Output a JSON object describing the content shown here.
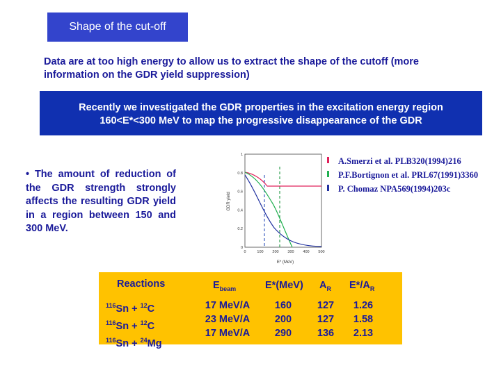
{
  "slide": {
    "title": "Shape of the cut-off",
    "intro": "Data are at too high energy to allow us to extract the shape of the cutoff (more information on the GDR yield suppression)",
    "banner_line1": "Recently  we investigated the GDR properties in the excitation energy region",
    "banner_line2": "160<E*<300 MeV to map the progressive disappearance of the GDR",
    "bullet_text": "The amount of reduction of the GDR strength strongly affects the resulting GDR yield in a region between 150 and 300 MeV."
  },
  "legend": [
    {
      "label": "A.Smerzi et al.  PLB320(1994)216",
      "color": "#e0205a"
    },
    {
      "label": "P.F.Bortignon et al. PRL67(1991)3360",
      "color": "#20b050"
    },
    {
      "label": "P. Chomaz  NPA569(1994)203c",
      "color": "#2030a0"
    }
  ],
  "plot": {
    "ylabel": "GDR yield",
    "xlabel": "E* (MeV)",
    "yticks": [
      "1",
      "0.8",
      "0.6",
      "0.4",
      "0.2",
      "0"
    ],
    "xticks": [
      "0",
      "100",
      "200",
      "300",
      "400",
      "500"
    ]
  },
  "table": {
    "headers": {
      "reactions": "Reactions",
      "ebeam_main": "E",
      "ebeam_sub": "beam",
      "estar": "E*(MeV)",
      "ar_main": "A",
      "ar_sub": "R",
      "estar_ar_main": "E*/A",
      "estar_ar_sub": "R"
    },
    "rows": [
      {
        "tgt_a": "116",
        "tgt_el": "Sn",
        "plus": " + ",
        "proj_a": "12",
        "proj_el": "C",
        "ebeam": "17 MeV/A",
        "estar": "160",
        "ar": "127",
        "ratio": "1.26"
      },
      {
        "tgt_a": "116",
        "tgt_el": "Sn",
        "plus": " + ",
        "proj_a": "12",
        "proj_el": "C",
        "ebeam": "23 MeV/A",
        "estar": "200",
        "ar": "127",
        "ratio": "1.58"
      },
      {
        "tgt_a": "116",
        "tgt_el": "Sn",
        "plus": " + ",
        "proj_a": "24",
        "proj_el": "Mg",
        "ebeam": "17 MeV/A",
        "estar": "290",
        "ar": "136",
        "ratio": "2.13"
      }
    ]
  }
}
